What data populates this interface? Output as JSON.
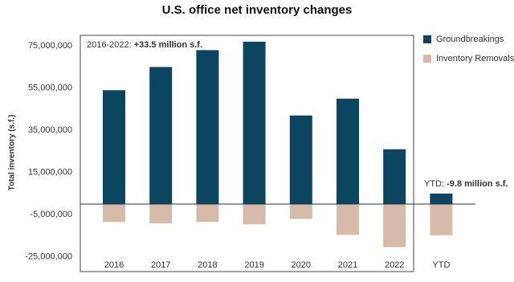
{
  "chart_data": {
    "type": "bar",
    "title": "U.S. office net inventory changes",
    "y_label": "Total inventory (s.f.)",
    "categories": [
      "2016",
      "2017",
      "2018",
      "2019",
      "2020",
      "2021",
      "2022",
      "YTD"
    ],
    "series": [
      {
        "name": "Groundbreakings",
        "color": "#0b4560",
        "values": [
          54000000,
          65000000,
          73000000,
          77000000,
          42000000,
          50000000,
          26000000,
          5000000
        ]
      },
      {
        "name": "Inventory Removals",
        "color": "#d6bca8",
        "values": [
          -8500000,
          -9200000,
          -8500000,
          -9600000,
          -7000000,
          -14600000,
          -20400000,
          -14800000
        ]
      }
    ],
    "ylim": [
      -32000000,
      80000000
    ],
    "yticks": [
      {
        "value": 75000000,
        "label": "75,000,000"
      },
      {
        "value": 55000000,
        "label": "55,000,000"
      },
      {
        "value": 35000000,
        "label": "35,000,000"
      },
      {
        "value": 15000000,
        "label": "15,000,000"
      },
      {
        "value": -5000000,
        "label": "-5,000,000"
      },
      {
        "value": -25000000,
        "label": "-25,000,000"
      }
    ],
    "annotations": [
      {
        "prefix": "2016-2022: ",
        "text": "+33.5 million s.f."
      },
      {
        "prefix": "YTD: ",
        "text": "-9.8 million s.f."
      }
    ],
    "legend_position": "right"
  }
}
